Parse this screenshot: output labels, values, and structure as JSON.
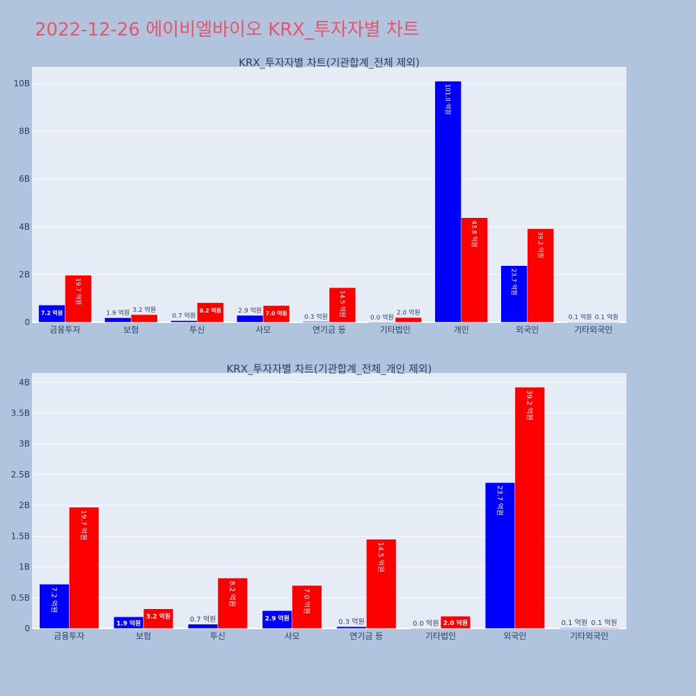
{
  "title": "2022-12-26 에이비엘바이오 KRX_투자자별 차트",
  "colors": {
    "buy": "#0000ff",
    "sell": "#ff0000",
    "plot_bg": "#e5ecf6",
    "page_bg": "#b0c4de",
    "title": "#e8546a"
  },
  "chart_data": [
    {
      "type": "bar",
      "title": "KRX_투자자별 차트(기관합계_전체 제외)",
      "categories": [
        "금융투자",
        "보험",
        "투신",
        "사모",
        "연기금 등",
        "기타법인",
        "개인",
        "외국인",
        "기타외국인"
      ],
      "series": [
        {
          "values": [
            0.72,
            0.19,
            0.07,
            0.29,
            0.03,
            0.0,
            10.1,
            2.37,
            0.01
          ],
          "labels": [
            "7.2 억원",
            "1.9 억원",
            "0.7 억원",
            "2.9 억원",
            "0.3 억원",
            "0.0 억원",
            "101.0 억원",
            "23.7 억원",
            "0.1 억원"
          ]
        },
        {
          "values": [
            1.97,
            0.32,
            0.82,
            0.7,
            1.45,
            0.2,
            4.38,
            3.92,
            0.01
          ],
          "labels": [
            "19.7 억원",
            "3.2 억원",
            "8.2 억원",
            "7.0 억원",
            "14.5 억원",
            "2.0 억원",
            "43.8 억원",
            "39.2 억원",
            "0.1 억원"
          ]
        }
      ],
      "ylim": [
        0,
        10.7
      ],
      "yticks": [
        0,
        2,
        4,
        6,
        8,
        10
      ],
      "ytick_labels": [
        "0",
        "2B",
        "4B",
        "6B",
        "8B",
        "10B"
      ],
      "grid": true
    },
    {
      "type": "bar",
      "title": "KRX_투자자별 차트(기관합계_전체_개인 제외)",
      "categories": [
        "금융투자",
        "보험",
        "투신",
        "사모",
        "연기금 등",
        "기타법인",
        "외국인",
        "기타외국인"
      ],
      "series": [
        {
          "values": [
            0.72,
            0.19,
            0.07,
            0.29,
            0.03,
            0.0,
            2.37,
            0.01
          ],
          "labels": [
            "7.2 억원",
            "1.9 억원",
            "0.7 억원",
            "2.9 억원",
            "0.3 억원",
            "0.0 억원",
            "23.7 억원",
            "0.1 억원"
          ]
        },
        {
          "values": [
            1.97,
            0.32,
            0.82,
            0.7,
            1.45,
            0.2,
            3.92,
            0.01
          ],
          "labels": [
            "19.7 억원",
            "3.2 억원",
            "8.2 억원",
            "7.0 억원",
            "14.5 억원",
            "2.0 억원",
            "39.2 억원",
            "0.1 억원"
          ]
        }
      ],
      "ylim": [
        0,
        4.15
      ],
      "yticks": [
        0,
        0.5,
        1,
        1.5,
        2,
        2.5,
        3,
        3.5,
        4
      ],
      "ytick_labels": [
        "0",
        "0.5B",
        "1B",
        "1.5B",
        "2B",
        "2.5B",
        "3B",
        "3.5B",
        "4B"
      ],
      "grid": true
    }
  ]
}
